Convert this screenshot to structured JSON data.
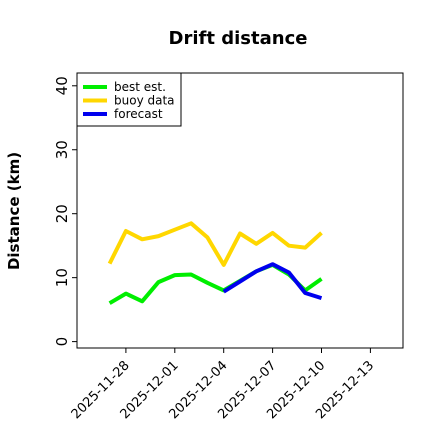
{
  "chart_data": {
    "type": "line",
    "title": "Drift distance",
    "xlabel": "",
    "ylabel": "Distance (km)",
    "ylim": [
      -1,
      42
    ],
    "xlim": [
      "2025-11-25",
      "2025-12-15"
    ],
    "yticks": [
      0,
      10,
      20,
      30,
      40
    ],
    "xticks": [
      {
        "date": "2025-11-28",
        "label": "2025-11-28",
        "color": "#000000"
      },
      {
        "date": "2025-12-01",
        "label": "2025-12-01",
        "color": "#000000"
      },
      {
        "date": "2025-12-04",
        "label": "2025-12-04",
        "color": "#2e8b2e"
      },
      {
        "date": "2025-12-07",
        "label": "2025-12-07",
        "color": "#000000"
      },
      {
        "date": "2025-12-10",
        "label": "2025-12-10",
        "color": "#000000"
      },
      {
        "date": "2025-12-13",
        "label": "2025-12-13",
        "color": "#000000"
      }
    ],
    "legend_position": "top-left",
    "grid": false,
    "series": [
      {
        "name": "best est.",
        "color": "#00ee00",
        "points": [
          [
            "2025-11-27",
            6.0
          ],
          [
            "2025-11-28",
            7.5
          ],
          [
            "2025-11-29",
            6.3
          ],
          [
            "2025-11-30",
            9.3
          ],
          [
            "2025-12-01",
            10.4
          ],
          [
            "2025-12-02",
            10.5
          ],
          [
            "2025-12-03",
            9.2
          ],
          [
            "2025-12-04",
            8.0
          ],
          [
            "2025-12-05",
            9.5
          ],
          [
            "2025-12-06",
            11.0
          ],
          [
            "2025-12-07",
            12.0
          ],
          [
            "2025-12-08",
            10.5
          ],
          [
            "2025-12-09",
            8.0
          ],
          [
            "2025-12-10",
            9.8
          ]
        ]
      },
      {
        "name": "buoy data",
        "color": "#ffd700",
        "points": [
          [
            "2025-11-27",
            12.2
          ],
          [
            "2025-11-28",
            17.3
          ],
          [
            "2025-11-29",
            16.0
          ],
          [
            "2025-11-30",
            16.5
          ],
          [
            "2025-12-01",
            17.5
          ],
          [
            "2025-12-02",
            18.5
          ],
          [
            "2025-12-03",
            16.3
          ],
          [
            "2025-12-04",
            12.0
          ],
          [
            "2025-12-05",
            16.9
          ],
          [
            "2025-12-06",
            15.3
          ],
          [
            "2025-12-07",
            17.0
          ],
          [
            "2025-12-08",
            15.0
          ],
          [
            "2025-12-09",
            14.7
          ],
          [
            "2025-12-10",
            17.0
          ]
        ]
      },
      {
        "name": "forecast",
        "color": "#0000ee",
        "points": [
          [
            "2025-12-04",
            7.8
          ],
          [
            "2025-12-05",
            9.4
          ],
          [
            "2025-12-06",
            11.0
          ],
          [
            "2025-12-07",
            12.1
          ],
          [
            "2025-12-08",
            10.8
          ],
          [
            "2025-12-09",
            7.6
          ],
          [
            "2025-12-10",
            6.8
          ]
        ]
      }
    ]
  }
}
